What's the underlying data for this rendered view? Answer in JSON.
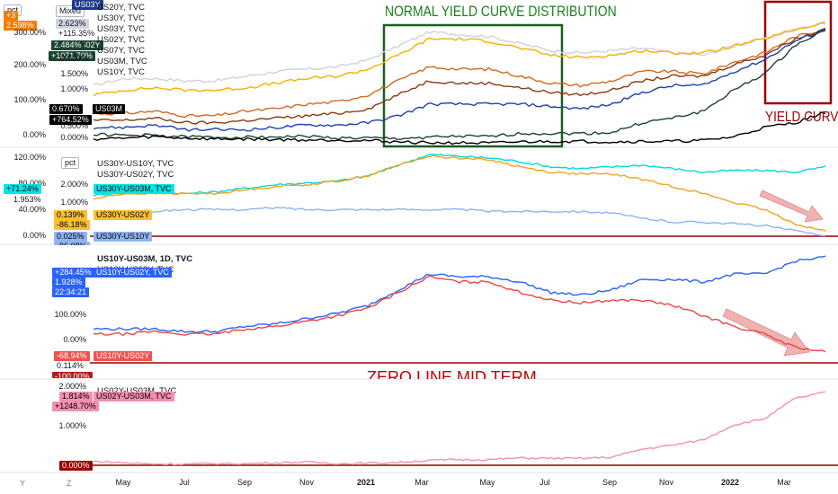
{
  "toolbar": {
    "pct_label": "pct",
    "mode_label": "Mixed",
    "y_button": "Y",
    "z_button": "Z"
  },
  "annotations": {
    "normal_curve": "NORMAL YIELD CURVE DISTRIBUTION",
    "inversion": "YIELD CURV",
    "zero_line": "ZERO LINE MID TERM"
  },
  "colors": {
    "us30y": "#d1d4dc",
    "us20y": "#f5b000",
    "us10y": "#cc6600",
    "us07y": "#8b4513",
    "us05y": "#1e40af",
    "us02y": "#1b4332",
    "us03m": "#000000",
    "cyan": "#00d9d9",
    "orange": "#f7a21b",
    "lightblue": "#8cb4f5",
    "red": "#ef4444",
    "blue": "#2962ff",
    "pink": "#f48fb1",
    "darkred": "#9b0000",
    "green": "#1b5e20"
  },
  "pane1": {
    "legend": [
      "US20Y, TVC",
      "US30Y, TVC",
      "US03Y, TVC",
      "US02Y, TVC",
      "US07Y, TVC",
      "US03M, TVC",
      "US10Y, TVC"
    ],
    "axis_labels": [
      "300.00%",
      "200.00%",
      "100.00%",
      "0.00%"
    ],
    "yield_ticks": [
      "2.000%",
      "1.500%",
      "1.000%",
      "0.500%",
      "0.000%"
    ],
    "badges": {
      "top_left": "+3",
      "orange_val": "2.598%",
      "us30y_val": "2.623%",
      "us30y_pct": "+115.35%",
      "us02y_tag": "US02Y",
      "us02y_val": "2.484%",
      "us02y_pct": "+1071.70%",
      "us03m_val": "0.670%",
      "us03m_pct": "+764.52%",
      "us03m_tag": "US03M",
      "blue_tag": "US03Y"
    }
  },
  "pane2": {
    "legend": [
      "US30Y-US10Y, TVC",
      "US30Y-US02Y, TVC",
      "US30Y-US03M, TVC"
    ],
    "axis_labels": [
      "120.00%",
      "80.00%",
      "40.00%",
      "0.00%"
    ],
    "yield_ticks": [
      "2.000%",
      "1.000%"
    ],
    "badges": {
      "cyan_pct": "+71.24%",
      "cyan_val": "1.953%",
      "orange_val": "0.139%",
      "orange_pct": "-86.18%",
      "orange_tag": "US30Y-US02Y",
      "blue_val": "0.025%",
      "blue_pct": "-96.08%",
      "blue_tag": "US30Y-US10Y"
    }
  },
  "pane3": {
    "legend": [
      "US10Y-US03M, 1D, TVC",
      "US10Y-US02Y, TVC"
    ],
    "axis_labels": [
      "100.00%",
      "0.00%"
    ],
    "badges": {
      "blue_pct": "+284.45%",
      "blue_val": "1.928%",
      "blue_time": "22:34:21",
      "red_pct": "-68.94%",
      "red_val": "0.114%",
      "red_tag": "US10Y-US02Y",
      "bottom": "-100.00%"
    }
  },
  "pane4": {
    "legend": [
      "US02Y-US03M, TVC"
    ],
    "axis_labels": [
      "2.000%",
      "1.000%",
      "0.000%"
    ],
    "badges": {
      "val": "1.814%",
      "pct": "+1248.70%",
      "zero": "0.000%"
    }
  },
  "x_axis": [
    "May",
    "Jul",
    "Sep",
    "Nov",
    "2021",
    "Mar",
    "May",
    "Jul",
    "Sep",
    "Nov",
    "2022",
    "Mar"
  ],
  "chart_data": [
    {
      "type": "line",
      "title": "",
      "x": [
        "2020-04",
        "2020-05",
        "2020-06",
        "2020-07",
        "2020-08",
        "2020-09",
        "2020-10",
        "2020-11",
        "2020-12",
        "2021-01",
        "2021-02",
        "2021-03",
        "2021-04",
        "2021-05",
        "2021-06",
        "2021-07",
        "2021-08",
        "2021-09",
        "2021-10",
        "2021-11",
        "2021-12",
        "2022-01",
        "2022-02",
        "2022-03",
        "2022-04"
      ],
      "series": [
        {
          "name": "US30Y",
          "values": [
            1.25,
            1.4,
            1.4,
            1.35,
            1.35,
            1.45,
            1.55,
            1.6,
            1.65,
            1.8,
            2.1,
            2.4,
            2.35,
            2.3,
            2.15,
            2.0,
            1.95,
            2.0,
            2.05,
            1.95,
            1.9,
            2.1,
            2.25,
            2.45,
            2.6
          ]
        },
        {
          "name": "US20Y",
          "values": [
            1.05,
            1.15,
            1.2,
            1.15,
            1.15,
            1.2,
            1.3,
            1.4,
            1.45,
            1.6,
            1.9,
            2.25,
            2.25,
            2.2,
            2.05,
            1.9,
            1.85,
            1.9,
            2.0,
            1.95,
            1.95,
            2.1,
            2.25,
            2.45,
            2.6
          ]
        },
        {
          "name": "US10Y",
          "values": [
            0.65,
            0.65,
            0.7,
            0.6,
            0.6,
            0.7,
            0.75,
            0.85,
            0.9,
            1.05,
            1.35,
            1.65,
            1.6,
            1.6,
            1.45,
            1.3,
            1.25,
            1.35,
            1.55,
            1.55,
            1.5,
            1.75,
            1.95,
            2.3,
            2.45
          ]
        },
        {
          "name": "US07Y",
          "values": [
            0.5,
            0.5,
            0.55,
            0.45,
            0.45,
            0.5,
            0.55,
            0.6,
            0.65,
            0.75,
            1.05,
            1.35,
            1.3,
            1.3,
            1.2,
            1.1,
            1.05,
            1.15,
            1.35,
            1.45,
            1.45,
            1.7,
            1.9,
            2.25,
            2.45
          ]
        },
        {
          "name": "US05Y",
          "values": [
            0.35,
            0.35,
            0.4,
            0.3,
            0.3,
            0.3,
            0.35,
            0.4,
            0.4,
            0.45,
            0.6,
            0.85,
            0.85,
            0.85,
            0.85,
            0.8,
            0.75,
            0.85,
            1.1,
            1.25,
            1.25,
            1.55,
            1.8,
            2.2,
            2.45
          ]
        },
        {
          "name": "US02Y",
          "values": [
            0.2,
            0.18,
            0.18,
            0.15,
            0.14,
            0.14,
            0.15,
            0.16,
            0.12,
            0.12,
            0.11,
            0.14,
            0.16,
            0.15,
            0.22,
            0.22,
            0.22,
            0.24,
            0.45,
            0.55,
            0.7,
            1.15,
            1.5,
            2.1,
            2.48
          ]
        },
        {
          "name": "US03M",
          "values": [
            0.1,
            0.12,
            0.15,
            0.12,
            0.1,
            0.1,
            0.09,
            0.08,
            0.08,
            0.07,
            0.04,
            0.02,
            0.02,
            0.01,
            0.04,
            0.05,
            0.05,
            0.04,
            0.05,
            0.05,
            0.07,
            0.15,
            0.35,
            0.45,
            0.67
          ]
        }
      ]
    },
    {
      "type": "line",
      "title": "",
      "x": [
        "2020-04",
        "2020-05",
        "2020-06",
        "2020-07",
        "2020-08",
        "2020-09",
        "2020-10",
        "2020-11",
        "2020-12",
        "2021-01",
        "2021-02",
        "2021-03",
        "2021-04",
        "2021-05",
        "2021-06",
        "2021-07",
        "2021-08",
        "2021-09",
        "2021-10",
        "2021-11",
        "2021-12",
        "2022-01",
        "2022-02",
        "2022-03",
        "2022-04"
      ],
      "ylim": [
        0,
        2.4
      ],
      "series": [
        {
          "name": "US30Y-US03M",
          "values": [
            1.15,
            1.25,
            1.25,
            1.2,
            1.25,
            1.35,
            1.45,
            1.5,
            1.55,
            1.7,
            2.0,
            2.3,
            2.25,
            2.2,
            2.1,
            1.95,
            1.9,
            1.95,
            2.0,
            1.9,
            1.8,
            1.85,
            1.85,
            1.8,
            1.95
          ]
        },
        {
          "name": "US30Y-US02Y",
          "values": [
            1.05,
            1.2,
            1.2,
            1.2,
            1.2,
            1.3,
            1.4,
            1.45,
            1.55,
            1.7,
            2.0,
            2.25,
            2.2,
            2.15,
            1.95,
            1.8,
            1.75,
            1.75,
            1.6,
            1.4,
            1.2,
            0.95,
            0.75,
            0.35,
            0.14
          ]
        },
        {
          "name": "US30Y-US10Y",
          "values": [
            0.6,
            0.7,
            0.7,
            0.75,
            0.75,
            0.75,
            0.8,
            0.75,
            0.75,
            0.75,
            0.75,
            0.75,
            0.75,
            0.7,
            0.7,
            0.7,
            0.7,
            0.65,
            0.5,
            0.4,
            0.4,
            0.35,
            0.3,
            0.15,
            0.025
          ]
        }
      ]
    },
    {
      "type": "line",
      "title": "",
      "x": [
        "2020-04",
        "2020-05",
        "2020-06",
        "2020-07",
        "2020-08",
        "2020-09",
        "2020-10",
        "2020-11",
        "2020-12",
        "2021-01",
        "2021-02",
        "2021-03",
        "2021-04",
        "2021-05",
        "2021-06",
        "2021-07",
        "2021-08",
        "2021-09",
        "2021-10",
        "2021-11",
        "2021-12",
        "2022-01",
        "2022-02",
        "2022-03",
        "2022-04"
      ],
      "ylim": [
        -0.1,
        2.0
      ],
      "series": [
        {
          "name": "US10Y-US03M",
          "values": [
            0.55,
            0.55,
            0.55,
            0.5,
            0.5,
            0.6,
            0.65,
            0.75,
            0.85,
            1.0,
            1.3,
            1.6,
            1.55,
            1.55,
            1.45,
            1.25,
            1.2,
            1.3,
            1.5,
            1.5,
            1.45,
            1.6,
            1.6,
            1.85,
            1.93
          ]
        },
        {
          "name": "US10Y-US02Y",
          "values": [
            0.45,
            0.45,
            0.5,
            0.45,
            0.45,
            0.55,
            0.6,
            0.7,
            0.8,
            0.95,
            1.25,
            1.55,
            1.45,
            1.45,
            1.25,
            1.1,
            1.05,
            1.1,
            1.1,
            1.0,
            0.8,
            0.6,
            0.45,
            0.2,
            0.11
          ]
        }
      ]
    },
    {
      "type": "line",
      "title": "",
      "x": [
        "2020-04",
        "2020-05",
        "2020-06",
        "2020-07",
        "2020-08",
        "2020-09",
        "2020-10",
        "2020-11",
        "2020-12",
        "2021-01",
        "2021-02",
        "2021-03",
        "2021-04",
        "2021-05",
        "2021-06",
        "2021-07",
        "2021-08",
        "2021-09",
        "2021-10",
        "2021-11",
        "2021-12",
        "2022-01",
        "2022-02",
        "2022-03",
        "2022-04"
      ],
      "ylim": [
        0,
        2.0
      ],
      "series": [
        {
          "name": "US02Y-US03M",
          "values": [
            0.1,
            0.06,
            0.03,
            0.03,
            0.04,
            0.04,
            0.06,
            0.08,
            0.04,
            0.05,
            0.07,
            0.12,
            0.14,
            0.14,
            0.18,
            0.17,
            0.17,
            0.2,
            0.4,
            0.5,
            0.63,
            1.0,
            1.15,
            1.65,
            1.81
          ]
        }
      ]
    }
  ]
}
